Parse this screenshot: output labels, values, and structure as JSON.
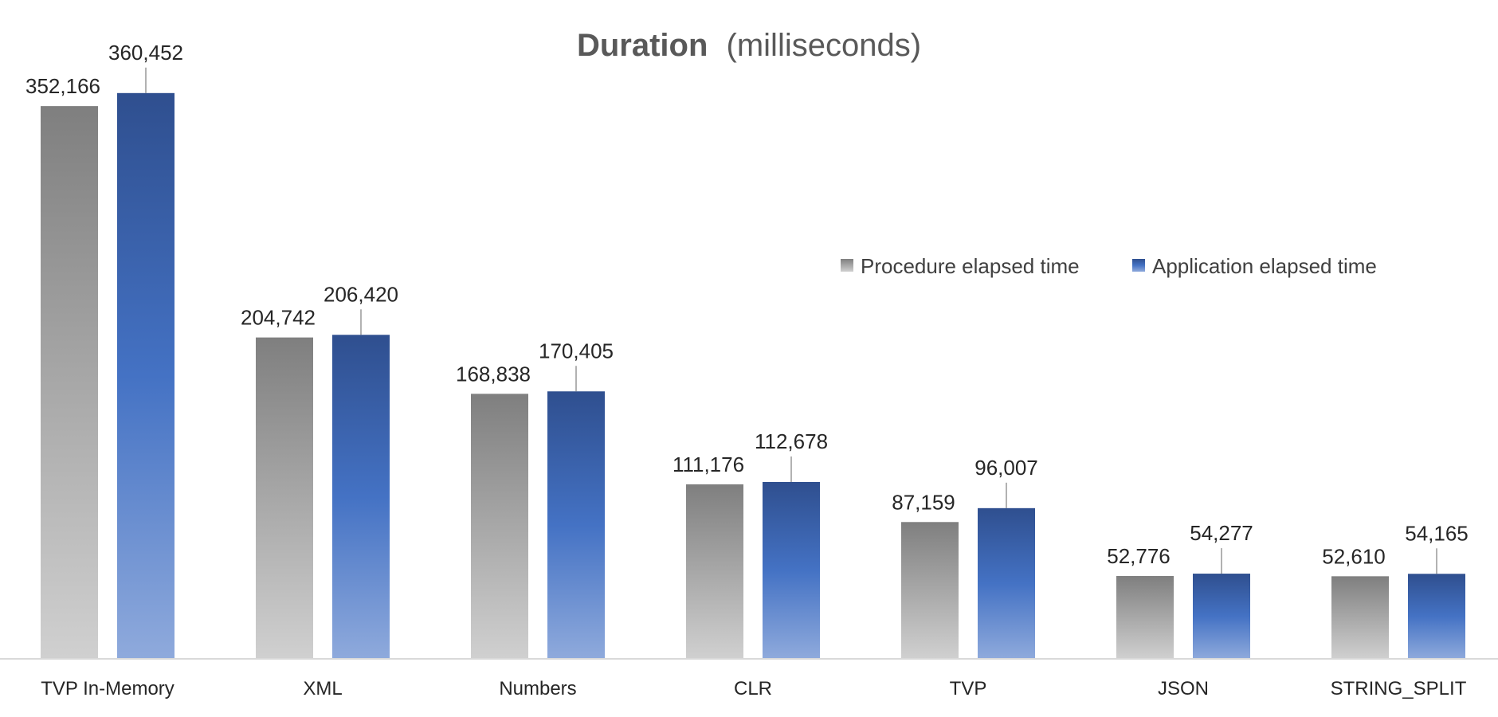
{
  "chart_data": {
    "type": "bar",
    "title_bold": "Duration",
    "title_rest": "(milliseconds)",
    "categories": [
      "TVP In-Memory",
      "XML",
      "Numbers",
      "CLR",
      "TVP",
      "JSON",
      "STRING_SPLIT"
    ],
    "series": [
      {
        "name": "Procedure elapsed time",
        "values": [
          352166,
          204742,
          168838,
          111176,
          87159,
          52776,
          52610
        ],
        "labels": [
          "352,166",
          "204,742",
          "168,838",
          "111,176",
          "87,159",
          "52,776",
          "52,610"
        ]
      },
      {
        "name": "Application elapsed time",
        "values": [
          360452,
          206420,
          170405,
          112678,
          96007,
          54277,
          54165
        ],
        "labels": [
          "360,452",
          "206,420",
          "170,405",
          "112,678",
          "96,007",
          "54,277",
          "54,165"
        ]
      }
    ],
    "ylim": [
      0,
      370000
    ],
    "grid": false,
    "legend_position": "right-middle",
    "colors": {
      "procedure_top": "#7f7f7f",
      "procedure_bottom": "#d0d0d0",
      "application_top": "#2f4f8f",
      "application_mid": "#4472c4",
      "application_bottom": "#8faadc",
      "axis": "#d9d9d9",
      "leader": "#7f7f7f"
    }
  }
}
